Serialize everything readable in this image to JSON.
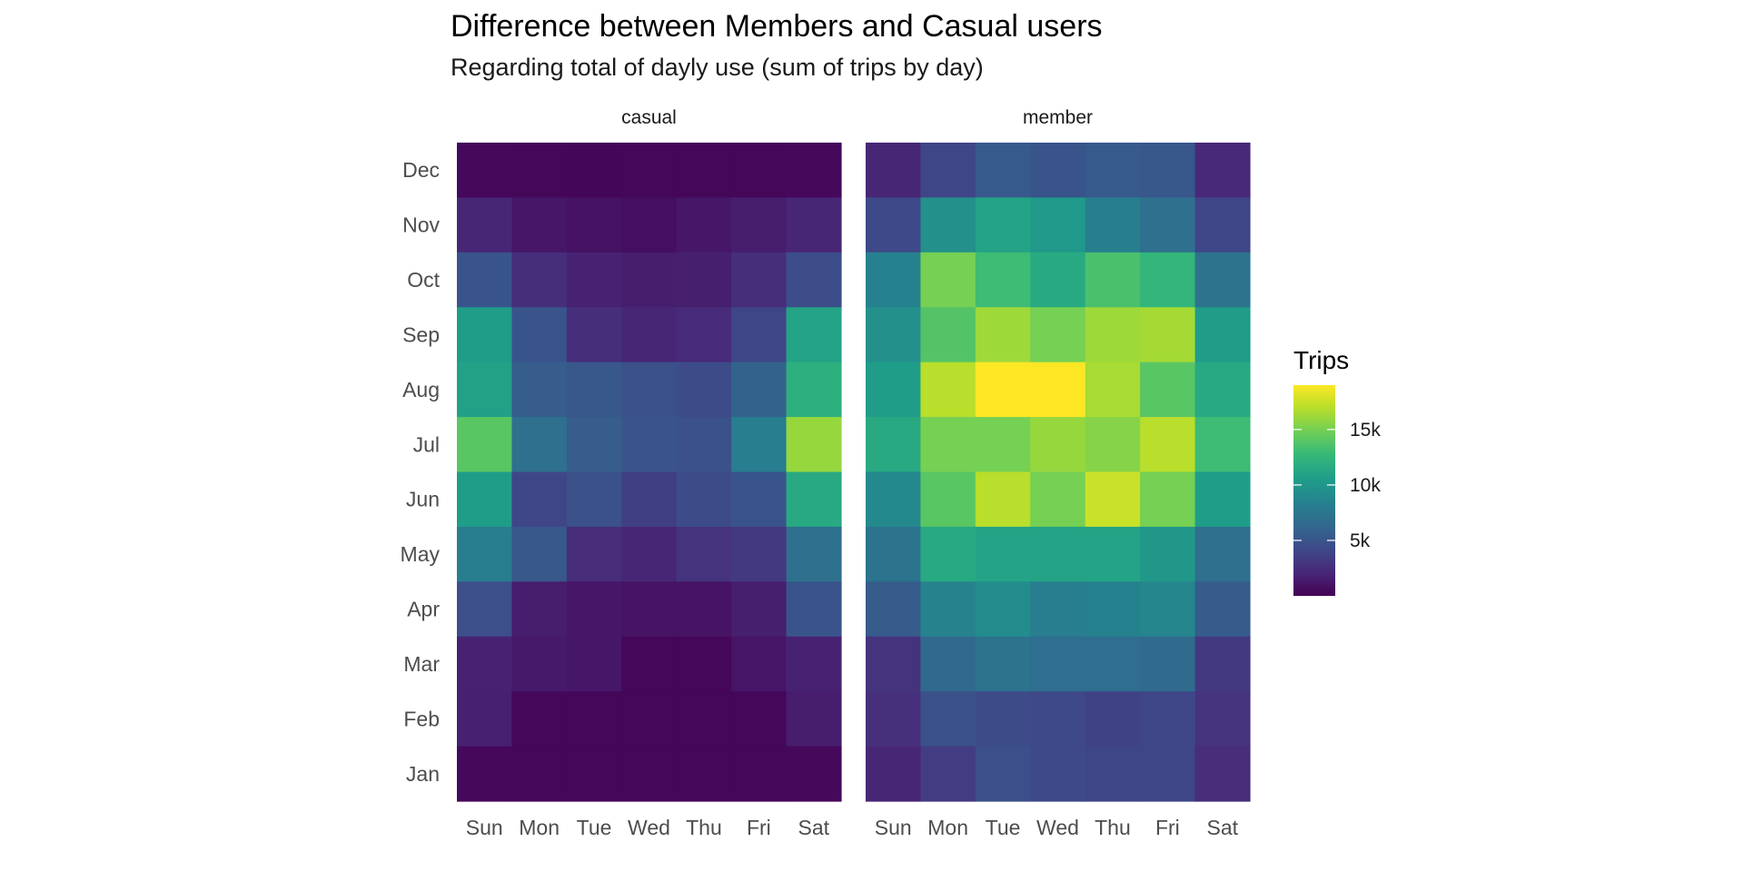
{
  "chart_data": {
    "type": "heatmap",
    "title": "Difference between Members and Casual users",
    "subtitle": "Regarding total of dayly use (sum of trips by day)",
    "x_categories": [
      "Sun",
      "Mon",
      "Tue",
      "Wed",
      "Thu",
      "Fri",
      "Sat"
    ],
    "y_categories": [
      "Dec",
      "Nov",
      "Oct",
      "Sep",
      "Aug",
      "Jul",
      "Jun",
      "May",
      "Apr",
      "Mar",
      "Feb",
      "Jan"
    ],
    "panels": [
      {
        "name": "casual",
        "values": [
          [
            400,
            300,
            250,
            300,
            350,
            300,
            400
          ],
          [
            2000,
            1200,
            900,
            700,
            1200,
            1500,
            2000
          ],
          [
            5000,
            2500,
            1800,
            1500,
            1600,
            2500,
            4500
          ],
          [
            10500,
            5000,
            2500,
            2000,
            2300,
            4000,
            11000
          ],
          [
            10800,
            5600,
            5200,
            4800,
            4400,
            6000,
            12000
          ],
          [
            14000,
            7000,
            5600,
            5000,
            4800,
            8000,
            16000
          ],
          [
            10500,
            4000,
            4800,
            3600,
            4400,
            5000,
            11500
          ],
          [
            8000,
            5200,
            2400,
            2000,
            2800,
            3200,
            7000
          ],
          [
            4600,
            1500,
            1200,
            1000,
            1000,
            1600,
            5000
          ],
          [
            1800,
            1300,
            1200,
            300,
            300,
            1100,
            1800
          ],
          [
            1700,
            300,
            300,
            300,
            300,
            300,
            1500
          ],
          [
            400,
            300,
            300,
            300,
            300,
            300,
            400
          ]
        ]
      },
      {
        "name": "member",
        "values": [
          [
            2000,
            4000,
            5400,
            5000,
            5400,
            5200,
            2200
          ],
          [
            4200,
            9500,
            11000,
            10200,
            8200,
            7000,
            4000
          ],
          [
            8400,
            15000,
            13000,
            11500,
            13500,
            12500,
            7200
          ],
          [
            9500,
            13800,
            16200,
            15000,
            16200,
            16400,
            10400
          ],
          [
            10500,
            17000,
            19000,
            19000,
            16500,
            14000,
            11500
          ],
          [
            11500,
            15000,
            15000,
            16000,
            15500,
            17000,
            13000
          ],
          [
            9000,
            14000,
            17000,
            15000,
            17500,
            15000,
            10500
          ],
          [
            7200,
            11500,
            11000,
            11000,
            11000,
            10000,
            7000
          ],
          [
            5500,
            8500,
            9200,
            8000,
            8400,
            8800,
            5500
          ],
          [
            2800,
            6400,
            7200,
            6800,
            6800,
            6600,
            3200
          ],
          [
            2600,
            4800,
            4400,
            4200,
            3800,
            4000,
            2800
          ],
          [
            2000,
            3400,
            4600,
            4200,
            4000,
            4000,
            2400
          ]
        ]
      }
    ],
    "color_scale": {
      "name": "viridis",
      "min": 0,
      "max": 19000,
      "stops": [
        "#440154",
        "#482878",
        "#3e4989",
        "#31688e",
        "#26828e",
        "#1f9e89",
        "#35b779",
        "#6ece58",
        "#b5de2b",
        "#fde725"
      ]
    },
    "legend": {
      "title": "Trips",
      "position": "right",
      "ticks": [
        {
          "value": 5000,
          "label": "5k"
        },
        {
          "value": 10000,
          "label": "10k"
        },
        {
          "value": 15000,
          "label": "15k"
        }
      ]
    },
    "grid": false
  }
}
